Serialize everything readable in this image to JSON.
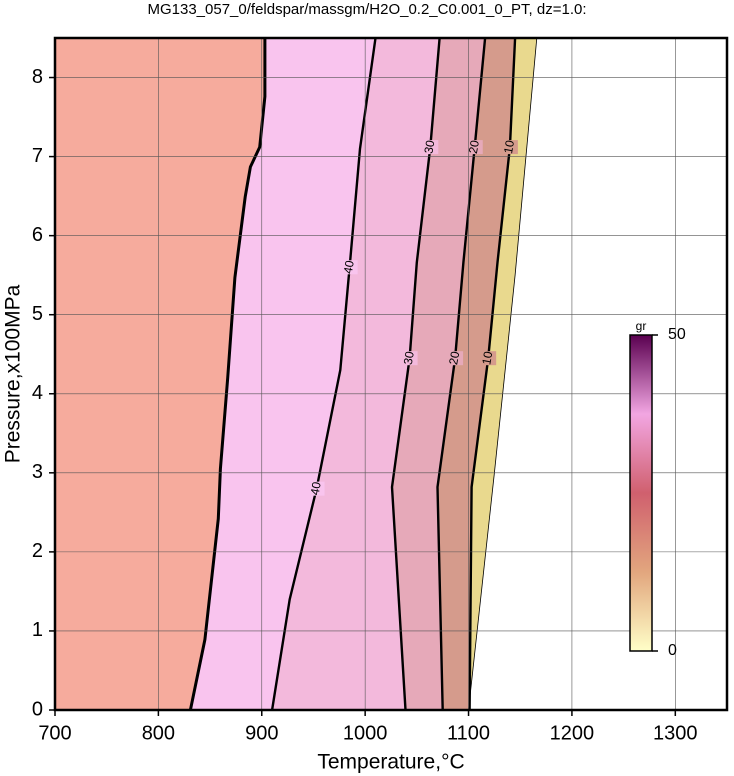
{
  "chart_data": {
    "type": "contour",
    "title": "MG133_057_0/feldspar/massgm/H2O_0.2_C0.001_0_PT, dz=1.0:",
    "x_label": "Temperature,°C",
    "y_label": "Pressure,x100MPa",
    "xlim": [
      700,
      1350
    ],
    "ylim": [
      0,
      8.5
    ],
    "xticks": [
      700,
      800,
      900,
      1000,
      1100,
      1200,
      1300
    ],
    "yticks": [
      0,
      1,
      2,
      3,
      4,
      5,
      6,
      7,
      8
    ],
    "grid": true,
    "contours": [
      {
        "level": 0,
        "fill": "#e9d98e",
        "x": [
          1100,
          1125,
          1145,
          1166
        ],
        "y": [
          0,
          3,
          5.5,
          8.5
        ]
      },
      {
        "level": 10,
        "fill": "#d59b8c",
        "x": [
          1101,
          1103,
          1119,
          1128,
          1140,
          1145
        ],
        "y": [
          0,
          2.82,
          4.45,
          5.66,
          7.12,
          8.5
        ]
      },
      {
        "level": 20,
        "fill": "#e6a9b9",
        "x": [
          1075,
          1070,
          1087,
          1095,
          1106,
          1116
        ],
        "y": [
          0,
          2.82,
          4.45,
          5.66,
          7.12,
          8.5
        ]
      },
      {
        "level": 30,
        "fill": "#f3b9dc",
        "x": [
          1039,
          1026,
          1043,
          1050,
          1063,
          1072
        ],
        "y": [
          0,
          2.82,
          4.45,
          5.66,
          7.12,
          8.5
        ]
      },
      {
        "level": 40,
        "fill": "#f9c4ee",
        "x": [
          910,
          927,
          953,
          976,
          985,
          995,
          1010
        ],
        "y": [
          0,
          1.4,
          2.8,
          4.3,
          5.6,
          7.1,
          8.5
        ]
      }
    ],
    "phase_boundary": {
      "fill": "#f6ab9d",
      "x": [
        831,
        845,
        858,
        860,
        867,
        874,
        884,
        889,
        898,
        903,
        903
      ],
      "y": [
        0,
        0.89,
        2.42,
        3.05,
        4.2,
        5.47,
        6.49,
        6.87,
        7.12,
        7.76,
        8.5
      ]
    },
    "colorbar": {
      "label": "gr",
      "lim": [
        0,
        50
      ],
      "ticks": [
        0,
        50
      ],
      "colors": [
        "#ffffc8",
        "#e2a67e",
        "#d0606e",
        "#f2a6e2",
        "#5a0050"
      ]
    }
  }
}
